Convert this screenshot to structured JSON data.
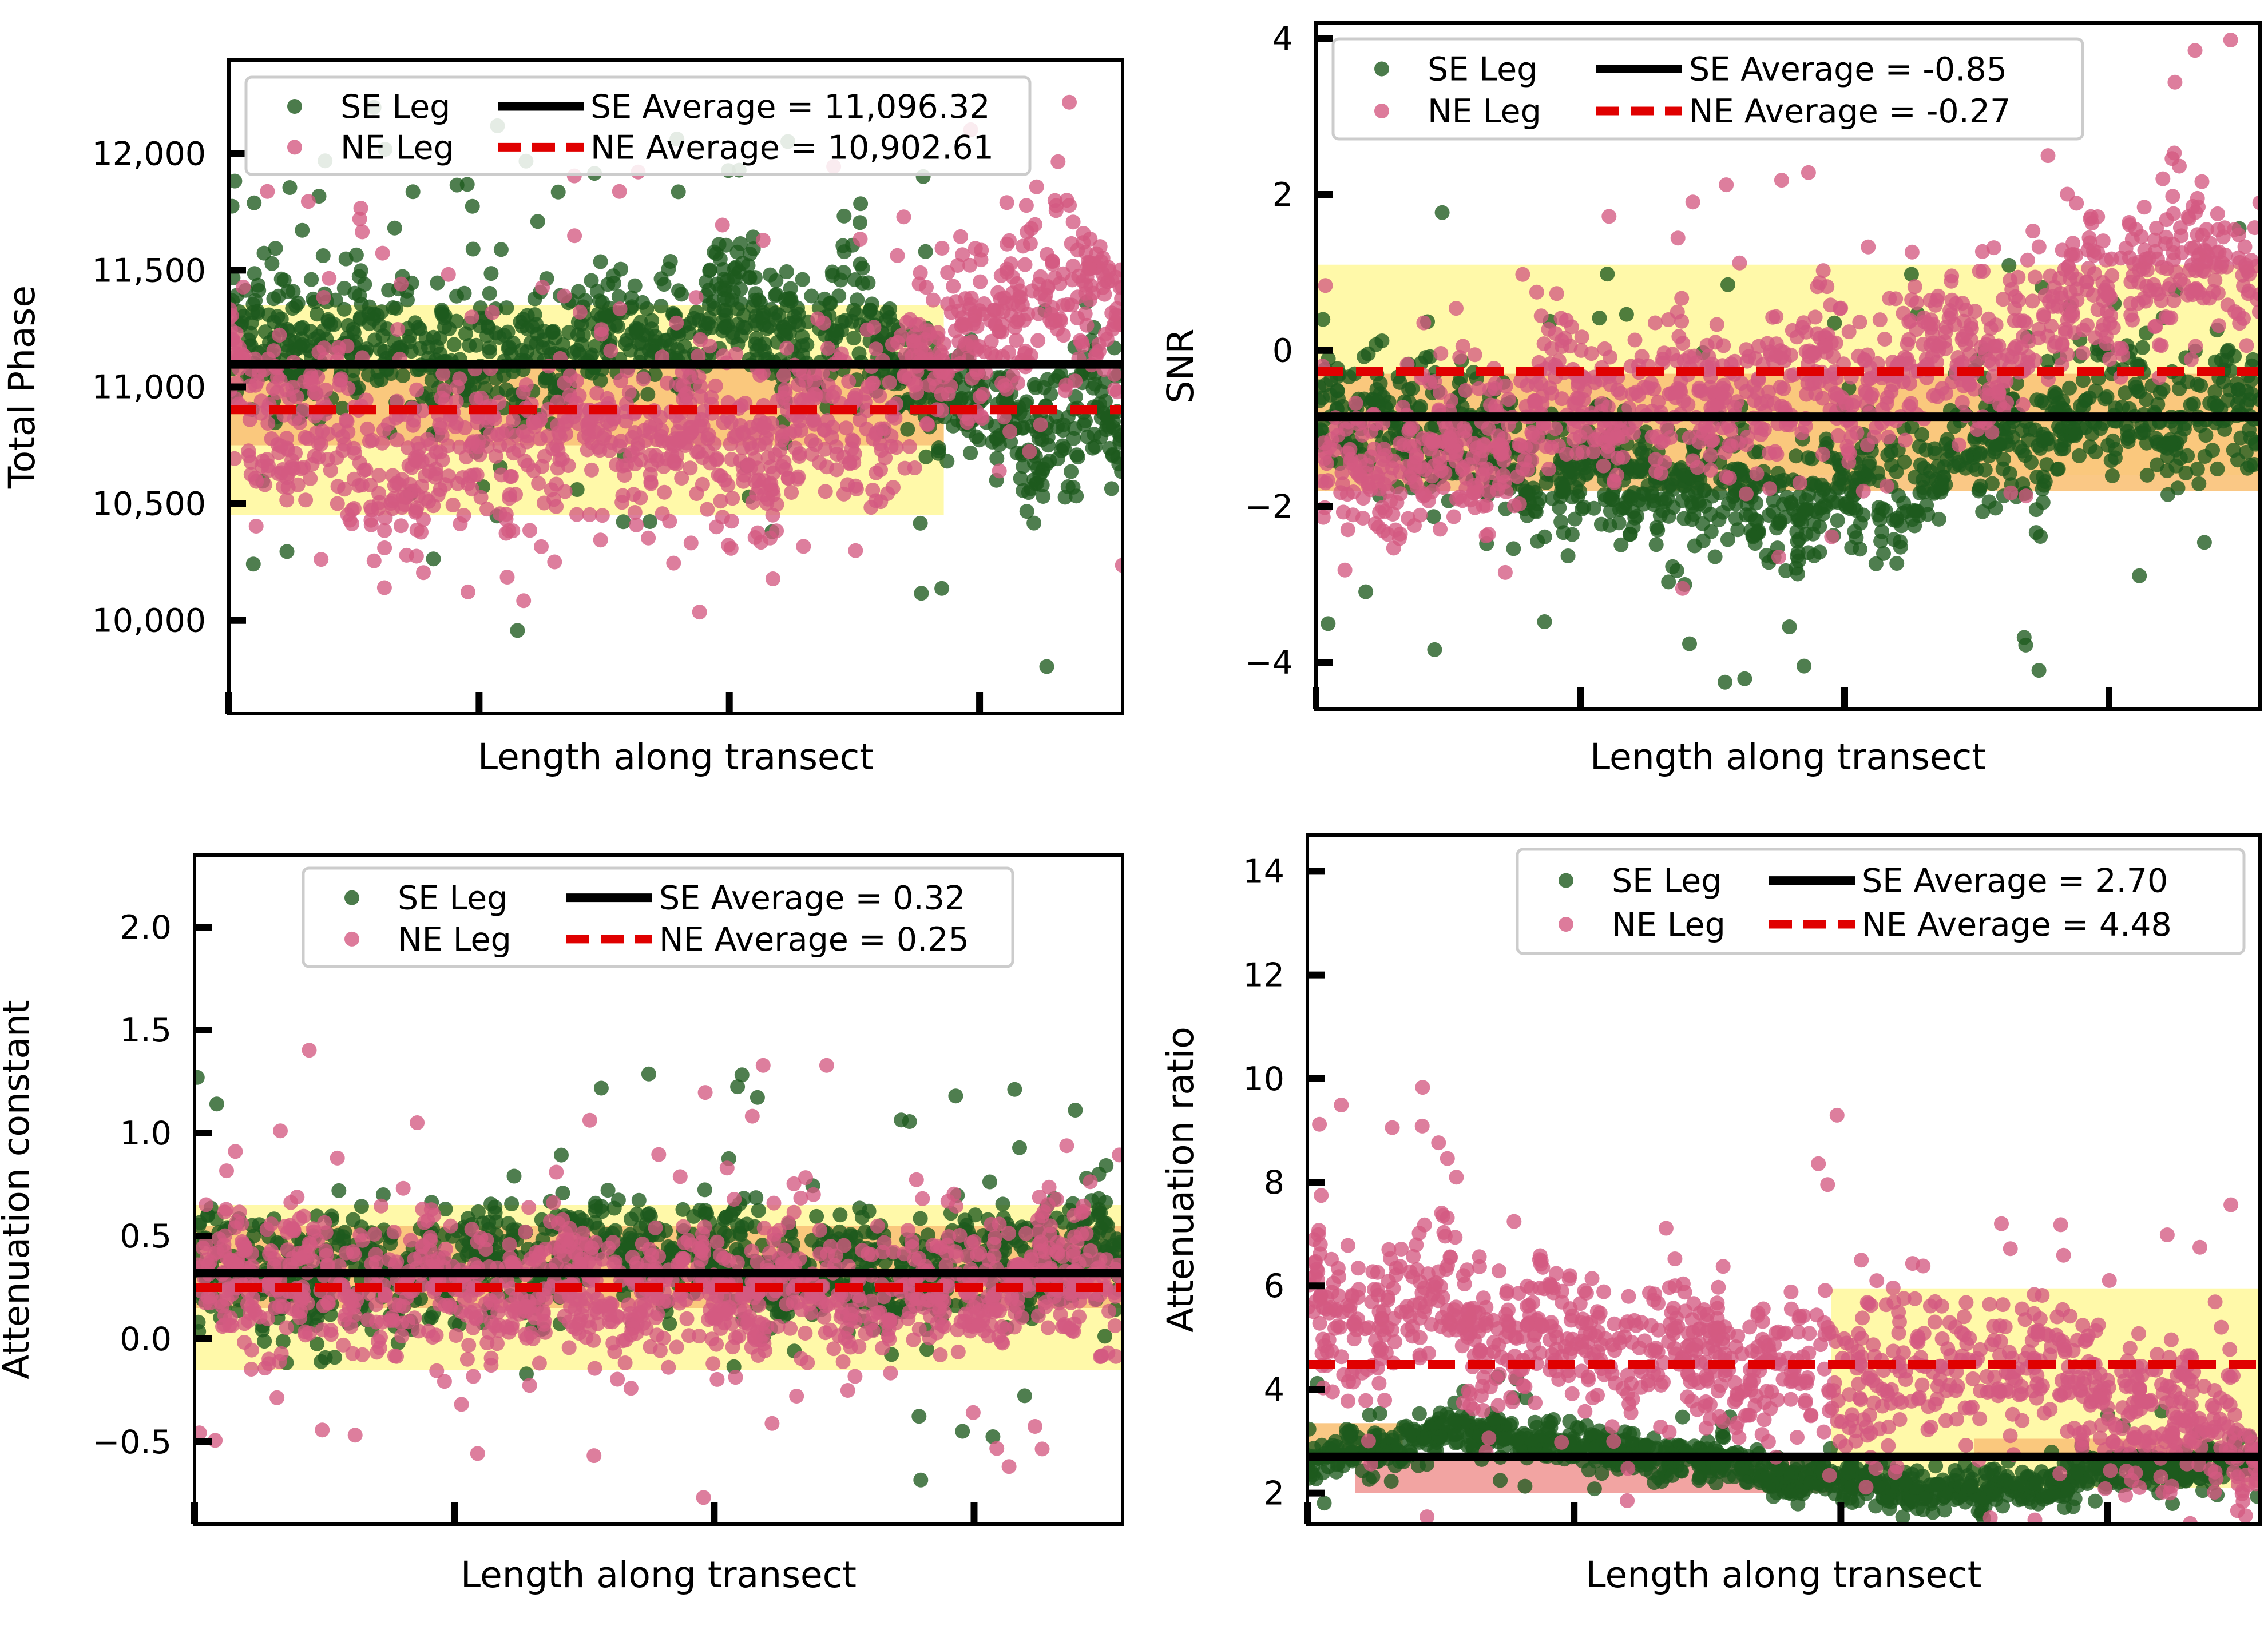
{
  "colors": {
    "se_point": "#1e5a1e",
    "ne_point": "#d45a82",
    "se_line": "#000000",
    "ne_line": "#e00000",
    "band_yellow": "#fff8a0",
    "band_orange": "#f9c278",
    "band_salmon": "#f19a98"
  },
  "chart_data": [
    {
      "type": "scatter",
      "title": "",
      "xlabel": "Length along transect",
      "ylabel": "Total Phase",
      "ylim": [
        9600,
        12400
      ],
      "yticks": [
        "10,000",
        "10,500",
        "11,000",
        "11,500",
        "12,000"
      ],
      "ytick_values": [
        10000,
        10500,
        11000,
        11500,
        12000
      ],
      "xtick_count": 4,
      "series": [
        {
          "name": "SE Leg",
          "center": 11100,
          "spread": 260,
          "trend": [
            11150,
            11200,
            11100,
            11250,
            11300,
            11200,
            10850,
            10850
          ]
        },
        {
          "name": "NE Leg",
          "center": 10900,
          "spread": 350,
          "trend": [
            11050,
            10700,
            10700,
            10800,
            10750,
            10850,
            11350,
            11450
          ]
        }
      ],
      "averages": [
        {
          "name": "SE Average",
          "value": 11096.32,
          "label": "SE Average = 11,096.32"
        },
        {
          "name": "NE Average",
          "value": 10902.61,
          "label": "NE Average = 10,902.61"
        }
      ],
      "bands": [
        {
          "color": "yellow",
          "x0": 0.0,
          "x1": 0.8,
          "y0": 10450,
          "y1": 11350
        },
        {
          "color": "orange",
          "x0": 0.0,
          "x1": 0.8,
          "y0": 10750,
          "y1": 11100
        }
      ],
      "legend": {
        "location": "top",
        "entries": [
          "SE Leg",
          "NE Leg",
          "SE Average = 11,096.32",
          "NE Average = 10,902.61"
        ]
      }
    },
    {
      "type": "scatter",
      "title": "",
      "xlabel": "Length along transect",
      "ylabel": "SNR",
      "ylim": [
        -4.6,
        4.2
      ],
      "yticks": [
        "−4",
        "−2",
        "0",
        "2",
        "4"
      ],
      "ytick_values": [
        -4,
        -2,
        0,
        2,
        4
      ],
      "xtick_count": 4,
      "series": [
        {
          "name": "SE Leg",
          "center": -0.85,
          "spread": 0.8,
          "trend": [
            -0.8,
            -1.1,
            -1.6,
            -1.9,
            -1.9,
            -1.2,
            -0.8,
            -0.8
          ]
        },
        {
          "name": "NE Leg",
          "center": -0.27,
          "spread": 0.9,
          "trend": [
            -1.6,
            -1.4,
            -0.6,
            -0.6,
            -0.4,
            0.1,
            1.0,
            1.2
          ]
        }
      ],
      "averages": [
        {
          "name": "SE Average",
          "value": -0.85,
          "label": "SE Average = -0.85"
        },
        {
          "name": "NE Average",
          "value": -0.27,
          "label": "NE Average = -0.27"
        }
      ],
      "bands": [
        {
          "color": "yellow",
          "x0": 0.0,
          "x1": 1.0,
          "y0": -1.6,
          "y1": 1.1
        },
        {
          "color": "orange",
          "x0": 0.0,
          "x1": 1.0,
          "y0": -1.8,
          "y1": -0.3
        }
      ],
      "legend": {
        "location": "top",
        "entries": [
          "SE Leg",
          "NE Leg",
          "SE Average = -0.85",
          "NE Average = -0.27"
        ]
      }
    },
    {
      "type": "scatter",
      "title": "",
      "xlabel": "Length along transect",
      "ylabel": "Attenuation constant",
      "ylim": [
        -0.9,
        2.35
      ],
      "yticks": [
        "−0.5",
        "0.0",
        "0.5",
        "1.0",
        "1.5",
        "2.0"
      ],
      "ytick_values": [
        -0.5,
        0.0,
        0.5,
        1.0,
        1.5,
        2.0
      ],
      "xtick_count": 4,
      "series": [
        {
          "name": "SE Leg",
          "center": 0.32,
          "spread": 0.25,
          "trend": [
            0.35,
            0.3,
            0.35,
            0.45,
            0.4,
            0.3,
            0.35,
            0.4
          ]
        },
        {
          "name": "NE Leg",
          "center": 0.25,
          "spread": 0.3,
          "trend": [
            0.35,
            0.25,
            0.2,
            0.25,
            0.25,
            0.2,
            0.25,
            0.3
          ]
        }
      ],
      "averages": [
        {
          "name": "SE Average",
          "value": 0.32,
          "label": "SE Average = 0.32"
        },
        {
          "name": "NE Average",
          "value": 0.25,
          "label": "NE Average = 0.25"
        }
      ],
      "bands": [
        {
          "color": "yellow",
          "x0": 0.0,
          "x1": 1.0,
          "y0": -0.15,
          "y1": 0.65
        },
        {
          "color": "orange",
          "x0": 0.0,
          "x1": 1.0,
          "y0": 0.15,
          "y1": 0.55
        }
      ],
      "legend": {
        "location": "top",
        "entries": [
          "SE Leg",
          "NE Leg",
          "SE Average = 0.32",
          "NE Average = 0.25"
        ]
      }
    },
    {
      "type": "scatter",
      "title": "",
      "xlabel": "Length along transect",
      "ylabel": "Attenuation ratio",
      "ylim": [
        1.4,
        14.7
      ],
      "yticks": [
        "2",
        "4",
        "6",
        "8",
        "10",
        "12",
        "14"
      ],
      "ytick_values": [
        2,
        4,
        6,
        8,
        10,
        12,
        14
      ],
      "xtick_count": 4,
      "series": [
        {
          "name": "SE Leg",
          "center": 2.7,
          "spread": 0.35,
          "trend": [
            2.5,
            3.2,
            2.9,
            2.6,
            2.2,
            2.0,
            2.4,
            2.7
          ]
        },
        {
          "name": "NE Leg",
          "center": 4.48,
          "spread": 1.3,
          "trend": [
            5.6,
            5.5,
            5.0,
            4.6,
            4.2,
            4.6,
            3.6,
            3.0
          ]
        }
      ],
      "averages": [
        {
          "name": "SE Average",
          "value": 2.7,
          "label": "SE Average = 2.70"
        },
        {
          "name": "NE Average",
          "value": 4.48,
          "label": "NE Average = 4.48"
        }
      ],
      "bands": [
        {
          "color": "yellow",
          "x0": 0.55,
          "x1": 1.0,
          "y0": 2.1,
          "y1": 5.95
        },
        {
          "color": "salmon",
          "x0": 0.05,
          "x1": 0.55,
          "y0": 2.0,
          "y1": 2.7
        },
        {
          "color": "orange",
          "x0": 0.0,
          "x1": 0.1,
          "y0": 2.7,
          "y1": 3.35
        },
        {
          "color": "orange",
          "x0": 0.7,
          "x1": 0.95,
          "y0": 2.7,
          "y1": 3.05
        }
      ],
      "legend": {
        "location": "top-right",
        "entries": [
          "SE Leg",
          "NE Leg",
          "SE Average = 2.70",
          "NE Average = 4.48"
        ]
      }
    }
  ]
}
